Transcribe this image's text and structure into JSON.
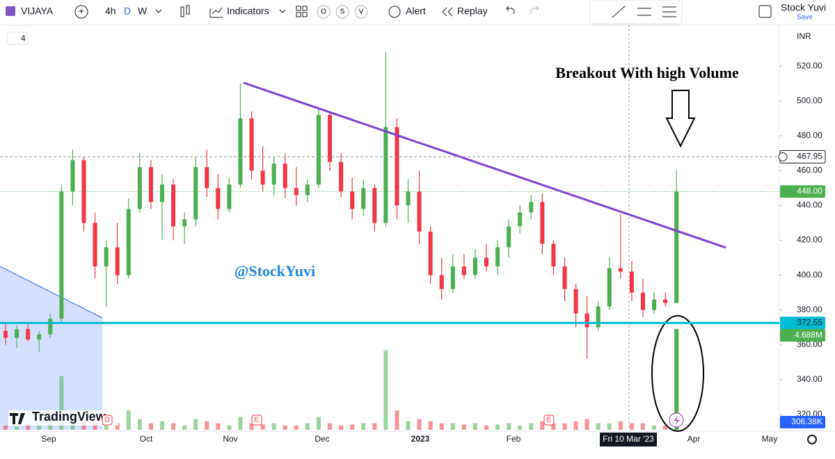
{
  "toolbar": {
    "symbol": "VIJAYA",
    "intervals": [
      "4h",
      "D",
      "W"
    ],
    "indicators": "Indicators",
    "sessions": [
      "O",
      "S",
      "V"
    ],
    "alert": "Alert",
    "replay": "Replay",
    "user": "Stock Yuvi",
    "save": "Save"
  },
  "chart": {
    "type": "candlestick",
    "layout_chip": "4",
    "currency": "INR",
    "logo": "TradingView",
    "annotations": {
      "headline": "Breakout With high Volume",
      "watermark": "@StockYuvi"
    },
    "event_markers": [
      "E",
      "E",
      "D"
    ],
    "ylim": [
      311.2,
      542
    ],
    "yticks": [
      320,
      340,
      360,
      380,
      400,
      420,
      440,
      460,
      480,
      500,
      520
    ],
    "yticks_labels": [
      "320.00",
      "340.00",
      "360.00",
      "380.00",
      "400.00",
      "420.00",
      "440.00",
      "460.00",
      "480.00",
      "500.00",
      "520.00"
    ],
    "xticks": [
      "Sep",
      "Oct",
      "Nov",
      "Dec",
      "2023",
      "Feb",
      "Apr",
      "May"
    ],
    "crosshair_date": "Fri 10 Mar '23",
    "price_labels": [
      {
        "value": 467.95,
        "label": "467.95"
      },
      {
        "value": 448,
        "label": "448.00"
      },
      {
        "value": 372.55,
        "label": "372.55"
      }
    ],
    "volume_labels": [
      {
        "value": 4.688,
        "label": "4.688M"
      },
      {
        "value": 0.30638,
        "label": "306.38K"
      }
    ],
    "vlim": [
      0,
      18.7
    ],
    "up_color": "#4caf50",
    "down_color": "#f23645",
    "candles": [
      [
        368,
        372,
        360,
        364
      ],
      [
        364,
        371,
        358,
        369
      ],
      [
        369,
        373,
        362,
        363
      ],
      [
        363,
        368,
        356,
        366
      ],
      [
        366,
        378,
        364,
        375
      ],
      [
        375,
        452,
        372,
        448
      ],
      [
        448,
        472,
        440,
        466
      ],
      [
        466,
        468,
        425,
        430
      ],
      [
        430,
        436,
        398,
        405
      ],
      [
        405,
        420,
        382,
        416
      ],
      [
        416,
        430,
        395,
        400
      ],
      [
        400,
        444,
        398,
        438
      ],
      [
        438,
        470,
        436,
        462
      ],
      [
        462,
        466,
        438,
        442
      ],
      [
        442,
        458,
        420,
        452
      ],
      [
        452,
        455,
        420,
        428
      ],
      [
        428,
        436,
        418,
        432
      ],
      [
        432,
        468,
        428,
        462
      ],
      [
        462,
        472,
        445,
        450
      ],
      [
        450,
        458,
        432,
        438
      ],
      [
        438,
        456,
        436,
        452
      ],
      [
        452,
        510,
        450,
        490
      ],
      [
        490,
        494,
        455,
        460
      ],
      [
        460,
        474,
        448,
        452
      ],
      [
        452,
        468,
        446,
        464
      ],
      [
        464,
        470,
        444,
        450
      ],
      [
        450,
        462,
        440,
        446
      ],
      [
        446,
        455,
        442,
        452
      ],
      [
        452,
        496,
        450,
        492
      ],
      [
        492,
        494,
        460,
        465
      ],
      [
        465,
        470,
        445,
        448
      ],
      [
        448,
        456,
        432,
        438
      ],
      [
        438,
        455,
        434,
        450
      ],
      [
        450,
        452,
        425,
        430
      ],
      [
        430,
        528,
        428,
        485
      ],
      [
        485,
        490,
        432,
        440
      ],
      [
        440,
        455,
        430,
        448
      ],
      [
        448,
        460,
        418,
        425
      ],
      [
        425,
        428,
        395,
        400
      ],
      [
        400,
        410,
        386,
        392
      ],
      [
        392,
        412,
        390,
        405
      ],
      [
        405,
        412,
        398,
        400
      ],
      [
        400,
        415,
        398,
        410
      ],
      [
        410,
        418,
        402,
        405
      ],
      [
        405,
        420,
        400,
        416
      ],
      [
        416,
        432,
        410,
        428
      ],
      [
        428,
        440,
        424,
        436
      ],
      [
        436,
        446,
        432,
        442
      ],
      [
        442,
        447,
        412,
        418
      ],
      [
        418,
        420,
        400,
        405
      ],
      [
        405,
        410,
        385,
        392
      ],
      [
        392,
        395,
        370,
        378
      ],
      [
        378,
        388,
        352,
        370
      ],
      [
        370,
        385,
        368,
        382
      ],
      [
        382,
        410,
        380,
        404
      ],
      [
        404,
        435,
        398,
        402
      ],
      [
        402,
        408,
        385,
        390
      ],
      [
        390,
        398,
        376,
        380
      ],
      [
        380,
        390,
        378,
        386
      ],
      [
        386,
        390,
        382,
        384
      ],
      [
        384,
        460,
        384,
        448
      ]
    ],
    "volume": [
      0.2,
      0.15,
      0.2,
      0.25,
      0.6,
      2.5,
      0.9,
      0.4,
      0.3,
      0.5,
      0.3,
      0.9,
      0.5,
      0.3,
      0.4,
      0.3,
      0.2,
      0.5,
      0.4,
      0.3,
      0.2,
      0.6,
      0.3,
      0.25,
      0.3,
      0.2,
      0.2,
      0.3,
      0.6,
      0.3,
      0.2,
      0.25,
      0.3,
      0.3,
      3.7,
      0.9,
      0.4,
      0.5,
      0.4,
      0.3,
      0.3,
      0.25,
      0.3,
      0.2,
      0.25,
      0.3,
      0.2,
      0.3,
      0.4,
      0.3,
      0.3,
      0.4,
      0.5,
      0.3,
      0.3,
      0.4,
      0.3,
      0.3,
      0.2,
      0.2,
      4.688
    ]
  }
}
